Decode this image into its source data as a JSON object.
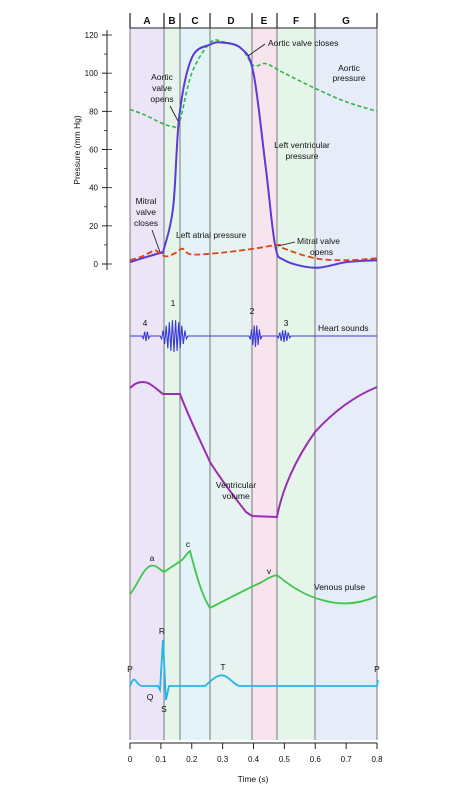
{
  "phases": [
    "A",
    "B",
    "C",
    "D",
    "E",
    "F",
    "G"
  ],
  "colors": {
    "aortic": "#2db84a",
    "ventricular": "#5b3ad6",
    "atrial": "#e0411f",
    "heart_sounds": "#3a3ad6",
    "volume": "#9b2cb3",
    "venous": "#3cc84a",
    "ecg": "#27b4e8"
  },
  "chart_data": {
    "type": "line",
    "xlabel": "Time (s)",
    "ylabel": "Pressure (mm Hg)",
    "xlim": [
      0,
      0.8
    ],
    "ylim": [
      0,
      120
    ],
    "x_ticks": [
      "0",
      "0.1",
      "0.2",
      "0.3",
      "0.4",
      "0.5",
      "0.6",
      "0.7",
      "0.8"
    ],
    "y_ticks": [
      "0",
      "20",
      "40",
      "60",
      "80",
      "100",
      "120"
    ],
    "series": [
      {
        "name": "Aortic pressure",
        "x": [
          0,
          0.05,
          0.1,
          0.14,
          0.16,
          0.2,
          0.26,
          0.3,
          0.36,
          0.4,
          0.44,
          0.5,
          0.6,
          0.7,
          0.8
        ],
        "y": [
          81,
          78,
          74,
          72,
          74,
          100,
          116,
          116.5,
          113,
          104,
          105,
          100,
          92,
          85,
          80
        ]
      },
      {
        "name": "Left ventricular pressure",
        "x": [
          0,
          0.04,
          0.08,
          0.1,
          0.11,
          0.14,
          0.16,
          0.2,
          0.26,
          0.3,
          0.36,
          0.4,
          0.44,
          0.47,
          0.5,
          0.6,
          0.7,
          0.8
        ],
        "y": [
          1,
          3,
          5,
          6,
          8,
          30,
          78,
          108,
          115,
          116,
          113,
          100,
          50,
          10,
          2,
          -2,
          1,
          2
        ]
      },
      {
        "name": "Left atrial pressure",
        "x": [
          0,
          0.04,
          0.08,
          0.1,
          0.12,
          0.15,
          0.17,
          0.2,
          0.3,
          0.4,
          0.48,
          0.5,
          0.6,
          0.7,
          0.8
        ],
        "y": [
          2,
          4,
          7,
          5,
          4,
          6,
          8,
          5,
          6,
          8,
          10,
          8,
          3,
          2,
          3
        ]
      }
    ]
  },
  "labels": {
    "aortic_valve_closes": "Aortic valve closes",
    "aortic_pressure_1": "Aortic",
    "aortic_pressure_2": "pressure",
    "aortic_valve_opens_1": "Aortic",
    "aortic_valve_opens_2": "valve",
    "aortic_valve_opens_3": "opens",
    "lv_pressure_1": "Left ventricular",
    "lv_pressure_2": "pressure",
    "mitral_closes_1": "Mitral",
    "mitral_closes_2": "valve",
    "mitral_closes_3": "closes",
    "left_atrial_pressure": "Left atrial pressure",
    "mitral_opens_1": "Mitral valve",
    "mitral_opens_2": "opens",
    "heart_sounds": "Heart sounds",
    "sound_1": "1",
    "sound_2": "2",
    "sound_3": "3",
    "sound_4": "4",
    "ventricular_volume_1": "Ventricular",
    "ventricular_volume_2": "volume",
    "venous_pulse": "Venous pulse",
    "wave_a": "a",
    "wave_c": "c",
    "wave_v": "v",
    "ecg_p_left": "P",
    "ecg_p_right": "P",
    "ecg_q": "Q",
    "ecg_r": "R",
    "ecg_s": "S",
    "ecg_t": "T"
  }
}
